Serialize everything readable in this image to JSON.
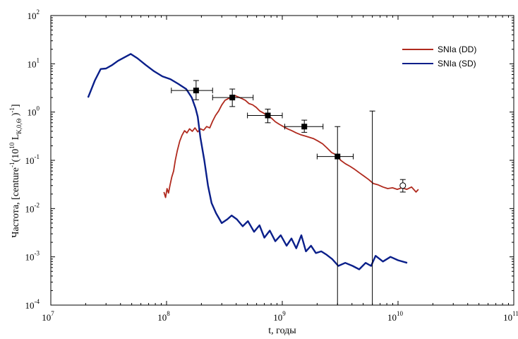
{
  "chart_data": {
    "type": "line",
    "title": "",
    "xlabel": "t, годы",
    "ylabel": "Частота, [centure⁻¹(10¹⁰ L_K,0,⊙)⁻¹]",
    "ylabel_parts": {
      "main": "Частота, [centure",
      "sup1": "-1",
      "mid": "(10",
      "sup2": "10",
      "l": " L",
      "sub": "K,0,Θ",
      "close": " )",
      "sup3": "-1",
      "end": "]"
    },
    "xscale": "log",
    "yscale": "log",
    "xlim": [
      10000000,
      100000000000
    ],
    "ylim": [
      0.0001,
      100
    ],
    "x_ticks": [
      {
        "base": "10",
        "exp": "7",
        "value": 10000000
      },
      {
        "base": "10",
        "exp": "8",
        "value": 100000000
      },
      {
        "base": "10",
        "exp": "9",
        "value": 1000000000
      },
      {
        "base": "10",
        "exp": "10",
        "value": 10000000000
      },
      {
        "base": "10",
        "exp": "11",
        "value": 100000000000
      }
    ],
    "y_ticks": [
      {
        "base": "10",
        "exp": "2",
        "value": 100
      },
      {
        "base": "10",
        "exp": "1",
        "value": 10
      },
      {
        "base": "10",
        "exp": "0",
        "value": 1
      },
      {
        "base": "10",
        "exp": "-1",
        "value": 0.1
      },
      {
        "base": "10",
        "exp": "-2",
        "value": 0.01
      },
      {
        "base": "10",
        "exp": "-3",
        "value": 0.001
      },
      {
        "base": "10",
        "exp": "-4",
        "value": 0.0001
      }
    ],
    "grid": false,
    "legend": "top-right",
    "series": [
      {
        "name": "SNIa (DD)",
        "color": "#b02a1e",
        "points": [
          [
            95000000,
            0.022
          ],
          [
            98000000,
            0.017
          ],
          [
            101000000,
            0.026
          ],
          [
            104000000,
            0.021
          ],
          [
            107000000,
            0.03
          ],
          [
            111000000,
            0.045
          ],
          [
            115000000,
            0.06
          ],
          [
            119000000,
            0.1
          ],
          [
            124000000,
            0.16
          ],
          [
            130000000,
            0.25
          ],
          [
            136000000,
            0.33
          ],
          [
            143000000,
            0.41
          ],
          [
            150000000,
            0.37
          ],
          [
            158000000,
            0.45
          ],
          [
            167000000,
            0.4
          ],
          [
            176000000,
            0.47
          ],
          [
            186000000,
            0.39
          ],
          [
            197000000,
            0.45
          ],
          [
            209000000,
            0.42
          ],
          [
            222000000,
            0.5
          ],
          [
            236000000,
            0.47
          ],
          [
            250000000,
            0.65
          ],
          [
            265000000,
            0.85
          ],
          [
            282000000,
            1.05
          ],
          [
            300000000,
            1.4
          ],
          [
            320000000,
            1.75
          ],
          [
            342000000,
            1.9
          ],
          [
            365000000,
            2.05
          ],
          [
            390000000,
            2.2
          ],
          [
            418000000,
            2.05
          ],
          [
            447000000,
            1.9
          ],
          [
            480000000,
            1.75
          ],
          [
            515000000,
            1.5
          ],
          [
            553000000,
            1.42
          ],
          [
            595000000,
            1.25
          ],
          [
            640000000,
            1.05
          ],
          [
            690000000,
            0.95
          ],
          [
            745000000,
            0.83
          ],
          [
            805000000,
            0.75
          ],
          [
            870000000,
            0.63
          ],
          [
            940000000,
            0.56
          ],
          [
            1020000000,
            0.5
          ],
          [
            1110000000,
            0.45
          ],
          [
            1210000000,
            0.41
          ],
          [
            1320000000,
            0.37
          ],
          [
            1440000000,
            0.34
          ],
          [
            1570000000,
            0.32
          ],
          [
            1710000000,
            0.3
          ],
          [
            1870000000,
            0.28
          ],
          [
            2040000000,
            0.25
          ],
          [
            2230000000,
            0.22
          ],
          [
            2440000000,
            0.18
          ],
          [
            2670000000,
            0.145
          ],
          [
            2920000000,
            0.13
          ],
          [
            3200000000,
            0.1
          ],
          [
            3510000000,
            0.085
          ],
          [
            3850000000,
            0.075
          ],
          [
            4220000000,
            0.065
          ],
          [
            4630000000,
            0.055
          ],
          [
            5080000000,
            0.047
          ],
          [
            5580000000,
            0.04
          ],
          [
            6130000000,
            0.033
          ],
          [
            6740000000,
            0.031
          ],
          [
            7410000000,
            0.028
          ],
          [
            8150000000,
            0.026
          ],
          [
            8960000000,
            0.027
          ],
          [
            9850000000,
            0.025
          ],
          [
            10800000000,
            0.027
          ],
          [
            11900000000,
            0.025
          ],
          [
            13100000000,
            0.028
          ],
          [
            14300000000,
            0.022
          ],
          [
            15000000000,
            0.025
          ]
        ]
      },
      {
        "name": "SNIa (SD)",
        "color": "#0a1f8a",
        "points": [
          [
            21000000,
            2.0
          ],
          [
            24000000,
            4.5
          ],
          [
            27000000,
            7.8
          ],
          [
            30000000,
            8.0
          ],
          [
            34000000,
            9.5
          ],
          [
            38000000,
            11.5
          ],
          [
            43000000,
            13.5
          ],
          [
            49000000,
            16.0
          ],
          [
            56000000,
            13.0
          ],
          [
            66000000,
            9.5
          ],
          [
            78000000,
            7.0
          ],
          [
            92000000,
            5.5
          ],
          [
            108000000,
            4.8
          ],
          [
            127000000,
            3.8
          ],
          [
            148000000,
            3.0
          ],
          [
            165000000,
            2.0
          ],
          [
            178000000,
            1.2
          ],
          [
            186000000,
            0.8
          ],
          [
            196000000,
            0.3
          ],
          [
            212000000,
            0.1
          ],
          [
            228000000,
            0.03
          ],
          [
            245000000,
            0.013
          ],
          [
            268000000,
            0.008
          ],
          [
            300000000,
            0.005
          ],
          [
            335000000,
            0.006
          ],
          [
            365000000,
            0.0072
          ],
          [
            405000000,
            0.006
          ],
          [
            455000000,
            0.0043
          ],
          [
            505000000,
            0.0055
          ],
          [
            570000000,
            0.0033
          ],
          [
            635000000,
            0.0045
          ],
          [
            700000000,
            0.0025
          ],
          [
            780000000,
            0.0035
          ],
          [
            870000000,
            0.0021
          ],
          [
            970000000,
            0.0028
          ],
          [
            1090000000,
            0.0017
          ],
          [
            1200000000,
            0.0024
          ],
          [
            1320000000,
            0.0015
          ],
          [
            1460000000,
            0.0028
          ],
          [
            1600000000,
            0.0013
          ],
          [
            1770000000,
            0.0017
          ],
          [
            1950000000,
            0.0012
          ],
          [
            2170000000,
            0.0013
          ],
          [
            2420000000,
            0.0011
          ],
          [
            2700000000,
            0.0009
          ],
          [
            3050000000,
            0.00065
          ],
          [
            3500000000,
            0.00075
          ],
          [
            4050000000,
            0.00065
          ],
          [
            4620000000,
            0.00055
          ],
          [
            5250000000,
            0.00075
          ],
          [
            5850000000,
            0.00065
          ],
          [
            6400000000,
            0.00105
          ],
          [
            7400000000,
            0.0008
          ],
          [
            8600000000,
            0.001
          ],
          [
            10000000000,
            0.00085
          ],
          [
            12000000000,
            0.00075
          ]
        ]
      }
    ],
    "observations": [
      {
        "x": 180000000,
        "y": 2.8,
        "xerr": [
          110000000,
          250000000
        ],
        "yerr": [
          1.8,
          4.5
        ],
        "marker": "filled-square"
      },
      {
        "x": 370000000,
        "y": 2.0,
        "xerr": [
          250000000,
          560000000
        ],
        "yerr": [
          1.3,
          3.0
        ],
        "marker": "filled-square"
      },
      {
        "x": 750000000,
        "y": 0.85,
        "xerr": [
          500000000,
          1000000000
        ],
        "yerr": [
          0.6,
          1.15
        ],
        "marker": "filled-square"
      },
      {
        "x": 1550000000,
        "y": 0.5,
        "xerr": [
          1050000000,
          2250000000
        ],
        "yerr": [
          0.38,
          0.68
        ],
        "marker": "filled-square"
      },
      {
        "x": 3000000000,
        "y": 0.12,
        "xerr": [
          2000000000,
          4100000000
        ],
        "yerr": [
          0.0001,
          0.5
        ],
        "marker": "filled-square"
      },
      {
        "x": 6000000000,
        "y": null,
        "xerr": null,
        "yerr": [
          0.0001,
          1.05
        ],
        "marker": "none"
      },
      {
        "x": 11000000000,
        "y": 0.03,
        "xerr": null,
        "yerr": [
          0.022,
          0.04
        ],
        "marker": "open-circle"
      }
    ]
  }
}
